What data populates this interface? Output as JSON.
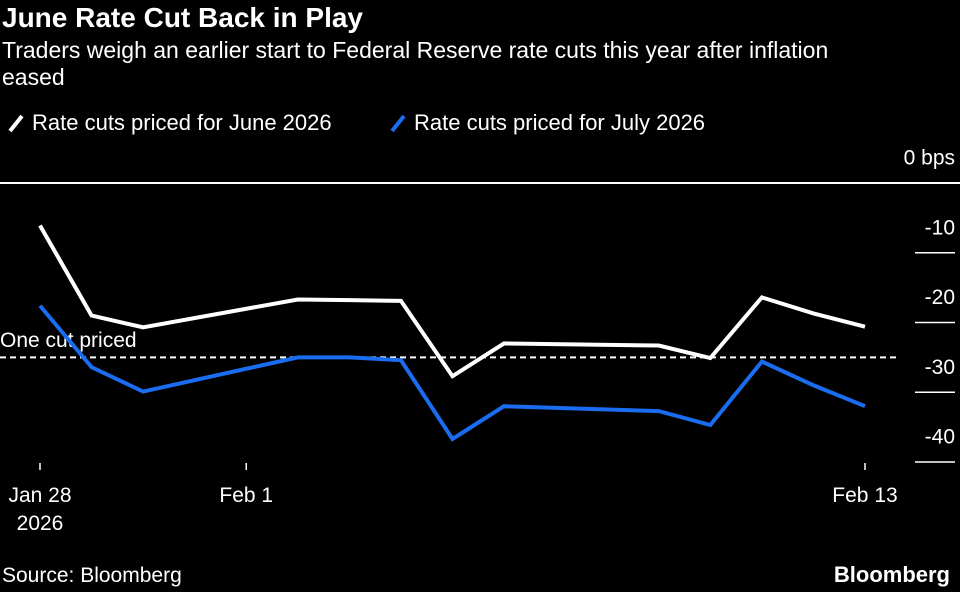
{
  "chart_data": {
    "type": "line",
    "title": "June Rate Cut Back in Play",
    "subtitle": "Traders weigh an earlier start to Federal Reserve rate cuts this year after inflation eased",
    "source": "Source: Bloomberg",
    "brand": "Bloomberg",
    "x": [
      "2026-01-28",
      "2026-01-29",
      "2026-01-30",
      "2026-02-02",
      "2026-02-03",
      "2026-02-04",
      "2026-02-05",
      "2026-02-06",
      "2026-02-09",
      "2026-02-10",
      "2026-02-11",
      "2026-02-12",
      "2026-02-13"
    ],
    "series": [
      {
        "name": "Rate cuts priced for June 2026",
        "color": "#ffffff",
        "values": [
          -6.1,
          -19.0,
          -20.7,
          -16.7,
          -16.8,
          -16.9,
          -27.7,
          -23.0,
          -23.3,
          -25.1,
          -16.4,
          -18.7,
          -20.6
        ]
      },
      {
        "name": "Rate cuts priced for July 2026",
        "color": "#1a6cf0",
        "values": [
          -17.6,
          -26.4,
          -29.9,
          -25.0,
          -25.0,
          -25.4,
          -36.7,
          -32.0,
          -32.7,
          -34.7,
          -25.6,
          -29.0,
          -32.0
        ]
      }
    ],
    "xlim": [
      "2026-01-28",
      "2026-02-13"
    ],
    "xticks": [
      {
        "value": "2026-01-28",
        "label": "Jan 28\n2026"
      },
      {
        "value": "2026-02-01",
        "label": "Feb 1"
      },
      {
        "value": "2026-02-13",
        "label": "Feb 13"
      }
    ],
    "ylim": [
      -40,
      0
    ],
    "yticks": [
      {
        "value": 0,
        "label": "0 bps"
      },
      -10,
      -20,
      -30,
      -40
    ],
    "reference_line": {
      "value": -25,
      "label": "One cut priced"
    }
  }
}
